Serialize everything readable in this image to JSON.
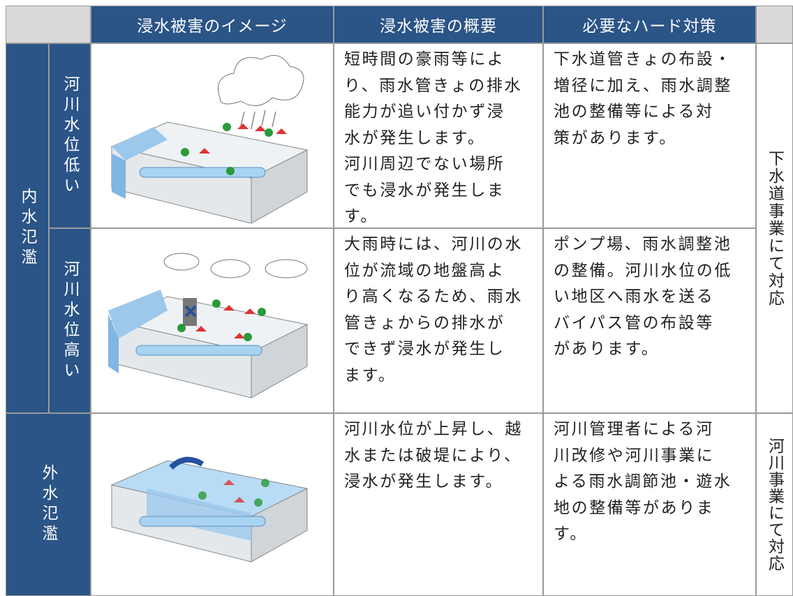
{
  "header": {
    "columns": [
      "浸水被害のイメージ",
      "浸水被害の概要",
      "必要なハード対策"
    ]
  },
  "groups": [
    {
      "label": "内水氾濫",
      "responsible": "下水道事業にて対応",
      "rows": [
        {
          "condition": "河川水位低い",
          "overview": [
            "短時間の豪雨等によ",
            "り、雨水管きょの排水",
            "能力が追い付かず浸",
            "水が発生します。",
            "河川周辺でない場所",
            "でも浸水が発生しま",
            "す。"
          ],
          "measures": [
            "下水道管きょの布設・",
            "増径に加え、雨水調整",
            "池の整備等による対",
            "策があります。"
          ]
        },
        {
          "condition": "河川水位高い",
          "overview": [
            "大雨時には、河川の水",
            "位が流域の地盤高よ",
            "り高くなるため、雨水",
            "管きょからの排水が",
            "できず浸水が発生し",
            "ます。"
          ],
          "measures": [
            "ポンプ場、雨水調整池",
            "の整備。河川水位の低",
            "い地区へ雨水を送る",
            "バイパス管の布設等",
            "があります。"
          ]
        }
      ]
    },
    {
      "label": "外水氾濫",
      "responsible": "河川事業にて対応",
      "rows": [
        {
          "overview": [
            "河川水位が上昇し、越",
            "水または破堤により、",
            "浸水が発生します。"
          ],
          "measures": [
            "河川管理者による河",
            "川改修や河川事業に",
            "よる雨水調節池・遊水",
            "地の整備等がありま",
            "す。"
          ]
        }
      ]
    }
  ]
}
